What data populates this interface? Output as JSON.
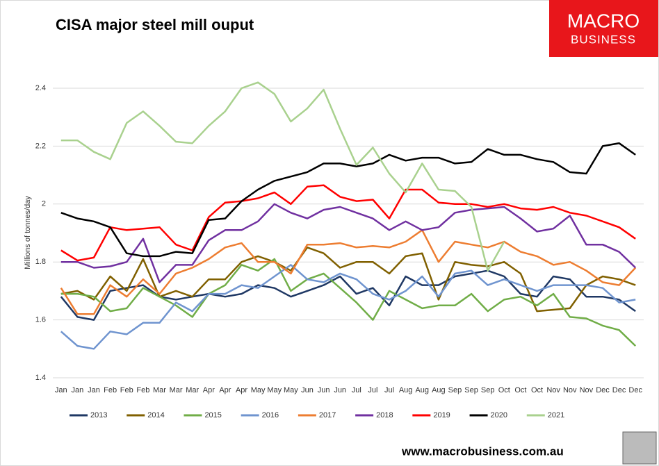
{
  "chart_data": {
    "type": "line",
    "title": "CISA major steel mill ouput",
    "logo": [
      "MACRO",
      "BUSINESS"
    ],
    "footer": "www.macrobusiness.com.au",
    "y_label": "Millions of tonnes/day",
    "categories": [
      "Jan",
      "Jan",
      "Jan",
      "Feb",
      "Feb",
      "Feb",
      "Mar",
      "Mar",
      "Mar",
      "Apr",
      "Apr",
      "Apr",
      "May",
      "May",
      "May",
      "Jun",
      "Jun",
      "Jun",
      "Jul",
      "Jul",
      "Jul",
      "Aug",
      "Aug",
      "Aug",
      "Sep",
      "Sep",
      "Sep",
      "Oct",
      "Oct",
      "Oct",
      "Nov",
      "Nov",
      "Nov",
      "Dec",
      "Dec",
      "Dec"
    ],
    "ylim": [
      1.4,
      2.4
    ],
    "yticks": [
      1.4,
      1.6,
      1.8,
      2,
      2.2,
      2.4
    ],
    "grid": true,
    "legend": "bottom",
    "series": [
      {
        "name": "2013",
        "color": "#1f3864",
        "values": [
          1.68,
          1.61,
          1.6,
          1.7,
          1.71,
          1.72,
          1.68,
          1.67,
          1.68,
          1.69,
          1.68,
          1.69,
          1.72,
          1.71,
          1.68,
          1.7,
          1.72,
          1.75,
          1.69,
          1.71,
          1.65,
          1.75,
          1.72,
          1.72,
          1.75,
          1.76,
          1.77,
          1.75,
          1.69,
          1.68,
          1.75,
          1.74,
          1.68,
          1.68,
          1.67,
          1.63
        ]
      },
      {
        "name": "2014",
        "color": "#806000",
        "values": [
          1.69,
          1.7,
          1.67,
          1.75,
          1.7,
          1.81,
          1.68,
          1.7,
          1.68,
          1.74,
          1.74,
          1.8,
          1.82,
          1.8,
          1.77,
          1.85,
          1.83,
          1.78,
          1.8,
          1.8,
          1.76,
          1.82,
          1.83,
          1.67,
          1.8,
          1.79,
          1.785,
          1.8,
          1.76,
          1.63,
          1.635,
          1.64,
          1.72,
          1.75,
          1.74,
          1.72
        ]
      },
      {
        "name": "2015",
        "color": "#70ad47",
        "values": [
          1.69,
          1.69,
          1.68,
          1.63,
          1.64,
          1.71,
          1.68,
          1.65,
          1.61,
          1.69,
          1.72,
          1.79,
          1.77,
          1.81,
          1.7,
          1.74,
          1.76,
          1.71,
          1.66,
          1.6,
          1.7,
          1.67,
          1.64,
          1.65,
          1.65,
          1.69,
          1.63,
          1.67,
          1.68,
          1.65,
          1.69,
          1.61,
          1.605,
          1.58,
          1.565,
          1.51
        ]
      },
      {
        "name": "2016",
        "color": "#6f94cf",
        "values": [
          1.56,
          1.51,
          1.5,
          1.56,
          1.55,
          1.59,
          1.59,
          1.66,
          1.63,
          1.69,
          1.69,
          1.72,
          1.71,
          1.75,
          1.79,
          1.74,
          1.73,
          1.76,
          1.74,
          1.69,
          1.67,
          1.7,
          1.75,
          1.68,
          1.76,
          1.77,
          1.72,
          1.74,
          1.72,
          1.7,
          1.72,
          1.72,
          1.72,
          1.71,
          1.66,
          1.67
        ]
      },
      {
        "name": "2017",
        "color": "#ed7d31",
        "values": [
          1.71,
          1.62,
          1.62,
          1.72,
          1.68,
          1.74,
          1.69,
          1.76,
          1.78,
          1.81,
          1.85,
          1.865,
          1.8,
          1.8,
          1.76,
          1.86,
          1.86,
          1.865,
          1.85,
          1.855,
          1.85,
          1.87,
          1.91,
          1.8,
          1.87,
          1.86,
          1.85,
          1.87,
          1.835,
          1.82,
          1.79,
          1.8,
          1.77,
          1.73,
          1.72,
          1.78
        ]
      },
      {
        "name": "2018",
        "color": "#7030a0",
        "values": [
          1.8,
          1.8,
          1.78,
          1.785,
          1.8,
          1.88,
          1.73,
          1.79,
          1.79,
          1.875,
          1.91,
          1.91,
          1.94,
          2.0,
          1.97,
          1.95,
          1.98,
          1.99,
          1.97,
          1.95,
          1.91,
          1.94,
          1.91,
          1.92,
          1.97,
          1.98,
          1.985,
          1.99,
          1.95,
          1.905,
          1.915,
          1.96,
          1.86,
          1.86,
          1.835,
          1.78
        ]
      },
      {
        "name": "2019",
        "color": "#ff0000",
        "values": [
          1.84,
          1.805,
          1.815,
          1.92,
          1.91,
          1.915,
          1.92,
          1.86,
          1.84,
          1.955,
          2.005,
          2.01,
          2.02,
          2.04,
          2.0,
          2.06,
          2.065,
          2.025,
          2.01,
          2.015,
          1.95,
          2.05,
          2.05,
          2.005,
          2.0,
          2.0,
          1.99,
          2.0,
          1.985,
          1.98,
          1.99,
          1.97,
          1.96,
          1.94,
          1.92,
          1.88
        ]
      },
      {
        "name": "2020",
        "color": "#000000",
        "values": [
          1.97,
          1.95,
          1.94,
          1.92,
          1.83,
          1.82,
          1.82,
          1.835,
          1.83,
          1.945,
          1.95,
          2.01,
          2.05,
          2.08,
          2.095,
          2.11,
          2.14,
          2.14,
          2.13,
          2.14,
          2.17,
          2.15,
          2.16,
          2.16,
          2.14,
          2.145,
          2.19,
          2.17,
          2.17,
          2.155,
          2.145,
          2.11,
          2.105,
          2.2,
          2.21,
          2.17
        ]
      },
      {
        "name": "2021",
        "color": "#a9d18e",
        "values": [
          2.22,
          2.22,
          2.18,
          2.155,
          2.28,
          2.32,
          2.27,
          2.215,
          2.21,
          2.27,
          2.32,
          2.4,
          2.42,
          2.38,
          2.285,
          2.33,
          2.395,
          2.26,
          2.135,
          2.195,
          2.105,
          2.04,
          2.14,
          2.05,
          2.045,
          1.99,
          1.77,
          1.87,
          null,
          null,
          null,
          null,
          null,
          null,
          null,
          null
        ]
      }
    ]
  }
}
